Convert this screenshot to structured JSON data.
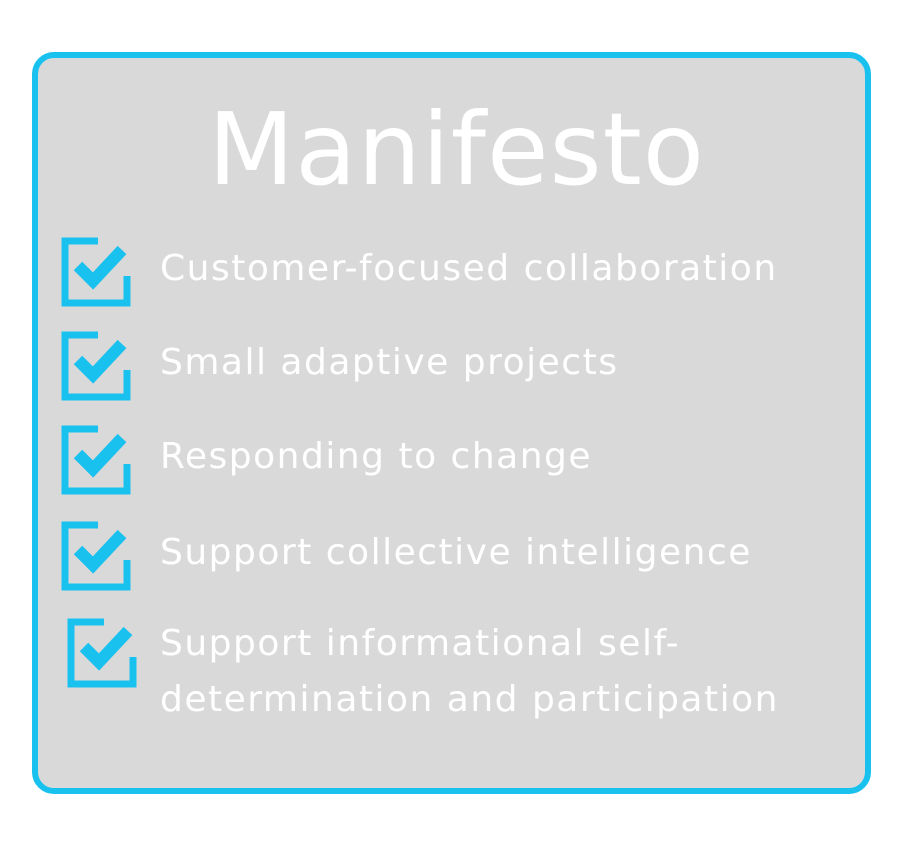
{
  "title": "Manifesto",
  "accent_color": "#19c1ee",
  "panel_color": "#d9d9d9",
  "items": [
    {
      "icon": "checkbox-checked-icon",
      "lines": [
        "Customer-focused collaboration"
      ]
    },
    {
      "icon": "checkbox-checked-icon",
      "lines": [
        "Small adaptive projects"
      ]
    },
    {
      "icon": "checkbox-checked-icon",
      "lines": [
        "Responding to change"
      ]
    },
    {
      "icon": "checkbox-checked-icon",
      "lines": [
        "Support collective intelligence"
      ]
    },
    {
      "icon": "checkbox-checked-icon",
      "lines": [
        "Support informational self-",
        "determination and participation"
      ]
    }
  ]
}
